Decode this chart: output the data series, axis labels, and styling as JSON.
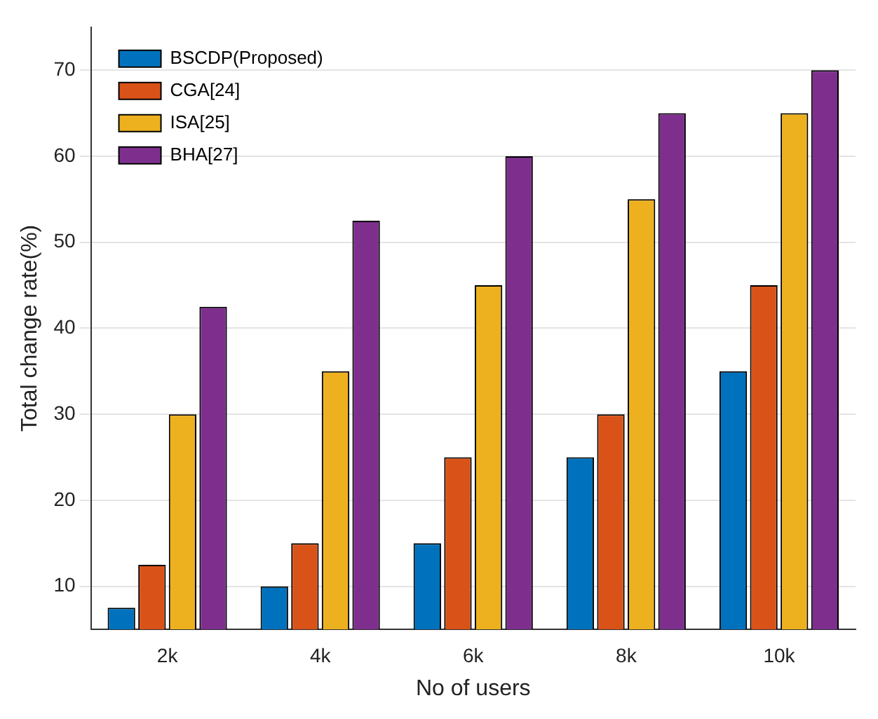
{
  "chart_data": {
    "type": "bar",
    "xlabel": "No of users",
    "ylabel": "Total change rate(%)",
    "categories": [
      "2k",
      "4k",
      "6k",
      "8k",
      "10k"
    ],
    "series": [
      {
        "name": "BSCDP(Proposed)",
        "color": "#0072bd",
        "values": [
          7.5,
          10,
          15,
          25,
          35
        ]
      },
      {
        "name": "CGA[24]",
        "color": "#d95319",
        "values": [
          12.5,
          15,
          25,
          30,
          45
        ]
      },
      {
        "name": "ISA[25]",
        "color": "#edb120",
        "values": [
          30,
          35,
          45,
          55,
          65
        ]
      },
      {
        "name": "BHA[27]",
        "color": "#7e2f8e",
        "values": [
          42.5,
          52.5,
          60,
          65,
          70
        ]
      }
    ],
    "ylim": [
      5,
      75
    ],
    "yticks": [
      10,
      20,
      30,
      40,
      50,
      60,
      70
    ],
    "grid": "y",
    "legend": "top left"
  }
}
